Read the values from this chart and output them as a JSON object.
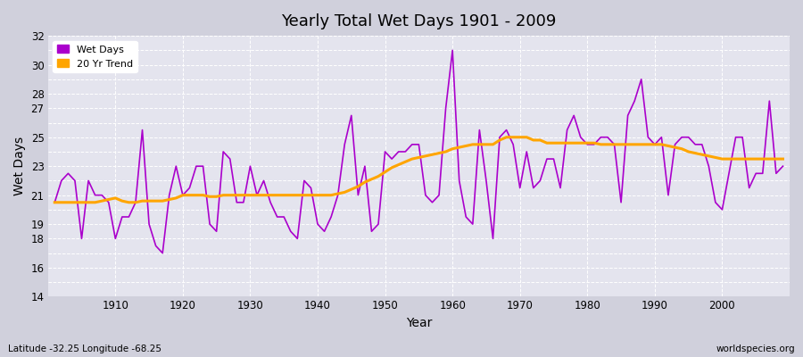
{
  "title": "Yearly Total Wet Days 1901 - 2009",
  "xlabel": "Year",
  "ylabel": "Wet Days",
  "footnote_left": "Latitude -32.25 Longitude -68.25",
  "footnote_right": "worldspecies.org",
  "line_color": "#AA00CC",
  "trend_color": "#FFA500",
  "fig_bg_color": "#D0D0DC",
  "ax_bg_color": "#E4E4EE",
  "ylim": [
    14,
    32
  ],
  "xlim": [
    1900,
    2010
  ],
  "xticks": [
    1910,
    1920,
    1930,
    1940,
    1950,
    1960,
    1970,
    1980,
    1990,
    2000
  ],
  "visible_yticks": [
    14,
    16,
    18,
    19,
    21,
    23,
    25,
    27,
    28,
    30,
    32
  ],
  "years": [
    1901,
    1902,
    1903,
    1904,
    1905,
    1906,
    1907,
    1908,
    1909,
    1910,
    1911,
    1912,
    1913,
    1914,
    1915,
    1916,
    1917,
    1918,
    1919,
    1920,
    1921,
    1922,
    1923,
    1924,
    1925,
    1926,
    1927,
    1928,
    1929,
    1930,
    1931,
    1932,
    1933,
    1934,
    1935,
    1936,
    1937,
    1938,
    1939,
    1940,
    1941,
    1942,
    1943,
    1944,
    1945,
    1946,
    1947,
    1948,
    1949,
    1950,
    1951,
    1952,
    1953,
    1954,
    1955,
    1956,
    1957,
    1958,
    1959,
    1960,
    1961,
    1962,
    1963,
    1964,
    1965,
    1966,
    1967,
    1968,
    1969,
    1970,
    1971,
    1972,
    1973,
    1974,
    1975,
    1976,
    1977,
    1978,
    1979,
    1980,
    1981,
    1982,
    1983,
    1984,
    1985,
    1986,
    1987,
    1988,
    1989,
    1990,
    1991,
    1992,
    1993,
    1994,
    1995,
    1996,
    1997,
    1998,
    1999,
    2000,
    2001,
    2002,
    2003,
    2004,
    2005,
    2006,
    2007,
    2008,
    2009
  ],
  "wet_days": [
    20.5,
    22.0,
    22.5,
    22.0,
    18.0,
    22.0,
    21.0,
    21.0,
    20.5,
    18.0,
    19.5,
    19.5,
    20.5,
    25.5,
    19.0,
    17.5,
    17.0,
    21.0,
    23.0,
    21.0,
    21.5,
    23.0,
    23.0,
    19.0,
    18.5,
    24.0,
    23.5,
    20.5,
    20.5,
    23.0,
    21.0,
    22.0,
    20.5,
    19.5,
    19.5,
    18.5,
    18.0,
    22.0,
    21.5,
    19.0,
    18.5,
    19.5,
    21.0,
    24.5,
    26.5,
    21.0,
    23.0,
    18.5,
    19.0,
    24.0,
    23.5,
    24.0,
    24.0,
    24.5,
    24.5,
    21.0,
    20.5,
    21.0,
    27.0,
    31.0,
    22.0,
    19.5,
    19.0,
    25.5,
    22.0,
    18.0,
    25.0,
    25.5,
    24.5,
    21.5,
    24.0,
    21.5,
    22.0,
    23.5,
    23.5,
    21.5,
    25.5,
    26.5,
    25.0,
    24.5,
    24.5,
    25.0,
    25.0,
    24.5,
    20.5,
    26.5,
    27.5,
    29.0,
    25.0,
    24.5,
    25.0,
    21.0,
    24.5,
    25.0,
    25.0,
    24.5,
    24.5,
    23.0,
    20.5,
    20.0,
    22.5,
    25.0,
    25.0,
    21.5,
    22.5,
    22.5,
    27.5,
    22.5,
    23.0
  ],
  "trend": [
    20.5,
    20.5,
    20.5,
    20.5,
    20.5,
    20.5,
    20.5,
    20.6,
    20.7,
    20.8,
    20.6,
    20.5,
    20.5,
    20.6,
    20.6,
    20.6,
    20.6,
    20.7,
    20.8,
    21.0,
    21.0,
    21.0,
    21.0,
    20.9,
    20.9,
    21.0,
    21.0,
    21.0,
    21.0,
    21.0,
    21.0,
    21.0,
    21.0,
    21.0,
    21.0,
    21.0,
    21.0,
    21.0,
    21.0,
    21.0,
    21.0,
    21.0,
    21.1,
    21.2,
    21.4,
    21.6,
    21.9,
    22.1,
    22.3,
    22.6,
    22.9,
    23.1,
    23.3,
    23.5,
    23.6,
    23.7,
    23.8,
    23.9,
    24.0,
    24.2,
    24.3,
    24.4,
    24.5,
    24.5,
    24.5,
    24.5,
    24.8,
    25.0,
    25.0,
    25.0,
    25.0,
    24.8,
    24.8,
    24.6,
    24.6,
    24.6,
    24.6,
    24.6,
    24.6,
    24.6,
    24.6,
    24.5,
    24.5,
    24.5,
    24.5,
    24.5,
    24.5,
    24.5,
    24.5,
    24.5,
    24.5,
    24.4,
    24.3,
    24.2,
    24.0,
    23.9,
    23.8,
    23.7,
    23.6,
    23.5,
    23.5,
    23.5,
    23.5,
    23.5,
    23.5,
    23.5,
    23.5,
    23.5,
    23.5
  ]
}
